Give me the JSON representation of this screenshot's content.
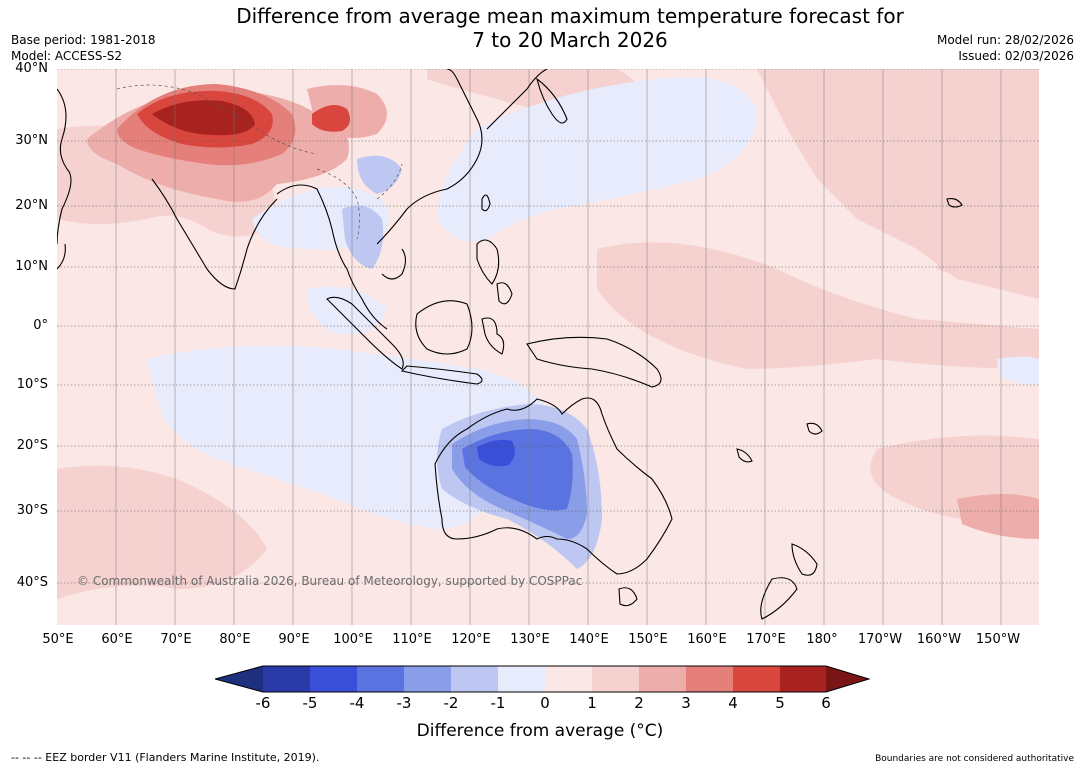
{
  "header": {
    "title_line1": "Difference from average mean maximum temperature forecast for",
    "title_line2": "7 to 20 March 2026",
    "base_period": "Base period: 1981-2018",
    "model": "Model: ACCESS-S2",
    "model_run": "Model run: 28/02/2026",
    "issued": "Issued: 02/03/2026"
  },
  "map": {
    "lat_labels": [
      "40°N",
      "30°N",
      "20°N",
      "10°N",
      "0°",
      "10°S",
      "20°S",
      "30°S",
      "40°S"
    ],
    "lon_labels": [
      "50°E",
      "60°E",
      "70°E",
      "80°E",
      "90°E",
      "100°E",
      "110°E",
      "120°E",
      "130°E",
      "140°E",
      "150°E",
      "160°E",
      "170°E",
      "180°",
      "170°W",
      "160°W",
      "150°W"
    ],
    "copyright": "© Commonwealth of Australia 2026, Bureau of Meteorology, supported by COSPPac"
  },
  "legend": {
    "ticks": [
      "-6",
      "-5",
      "-4",
      "-3",
      "-2",
      "-1",
      "0",
      "1",
      "2",
      "3",
      "4",
      "5",
      "6"
    ],
    "colors": [
      "#1e2f7e",
      "#2a3ba8",
      "#3a4fd8",
      "#5b73e0",
      "#8a9de8",
      "#bec7f2",
      "#e8ebfb",
      "#fbe8e6",
      "#f5d2d0",
      "#edaeab",
      "#e57f7a",
      "#d8463e",
      "#a8231f",
      "#7a1515"
    ],
    "label": "Difference from average (°C)"
  },
  "footer": {
    "eez": "--  --  -- EEZ border V11 (Flanders Marine Institute, 2019).",
    "boundaries": "Boundaries are not considered authoritative"
  }
}
